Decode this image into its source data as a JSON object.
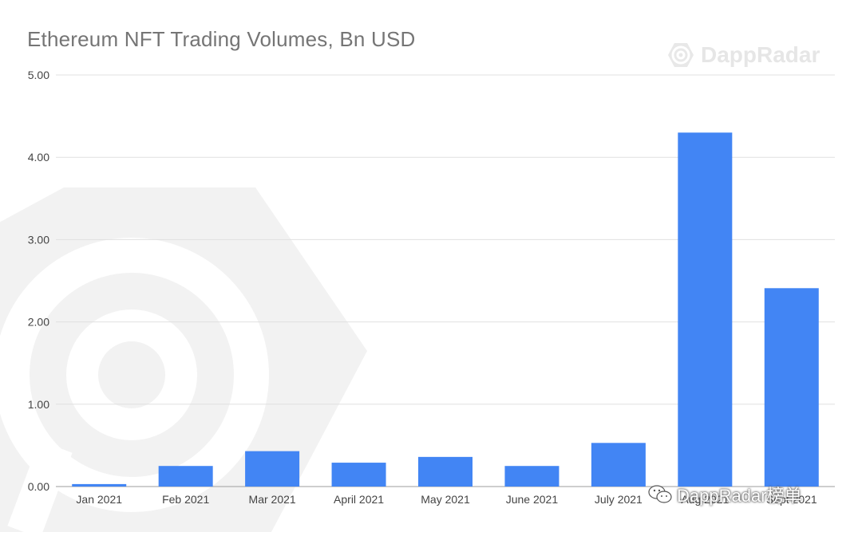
{
  "colors": {
    "bar": "#4285f4",
    "grid": "#e0e0e0",
    "axis_text": "#444444",
    "title": "#757575",
    "watermark": "#eeeeee"
  },
  "brand": {
    "icon": "dappradar-logo-icon",
    "text": "DappRadar"
  },
  "footer_badge": {
    "icon": "wechat-icon",
    "text": "DappRadar榜单"
  },
  "chart_data": {
    "type": "bar",
    "title": "Ethereum NFT Trading Volumes, Bn USD",
    "xlabel": "",
    "ylabel": "",
    "categories": [
      "Jan 2021",
      "Feb 2021",
      "Mar 2021",
      "April 2021",
      "May 2021",
      "June 2021",
      "July 2021",
      "Aug 2021",
      "Sept 2021"
    ],
    "values": [
      0.03,
      0.25,
      0.43,
      0.29,
      0.36,
      0.25,
      0.53,
      4.3,
      2.41
    ],
    "ylim": [
      0,
      5
    ],
    "yticks": [
      "0.00",
      "1.00",
      "2.00",
      "3.00",
      "4.00",
      "5.00"
    ],
    "grid": true,
    "legend": "none"
  }
}
